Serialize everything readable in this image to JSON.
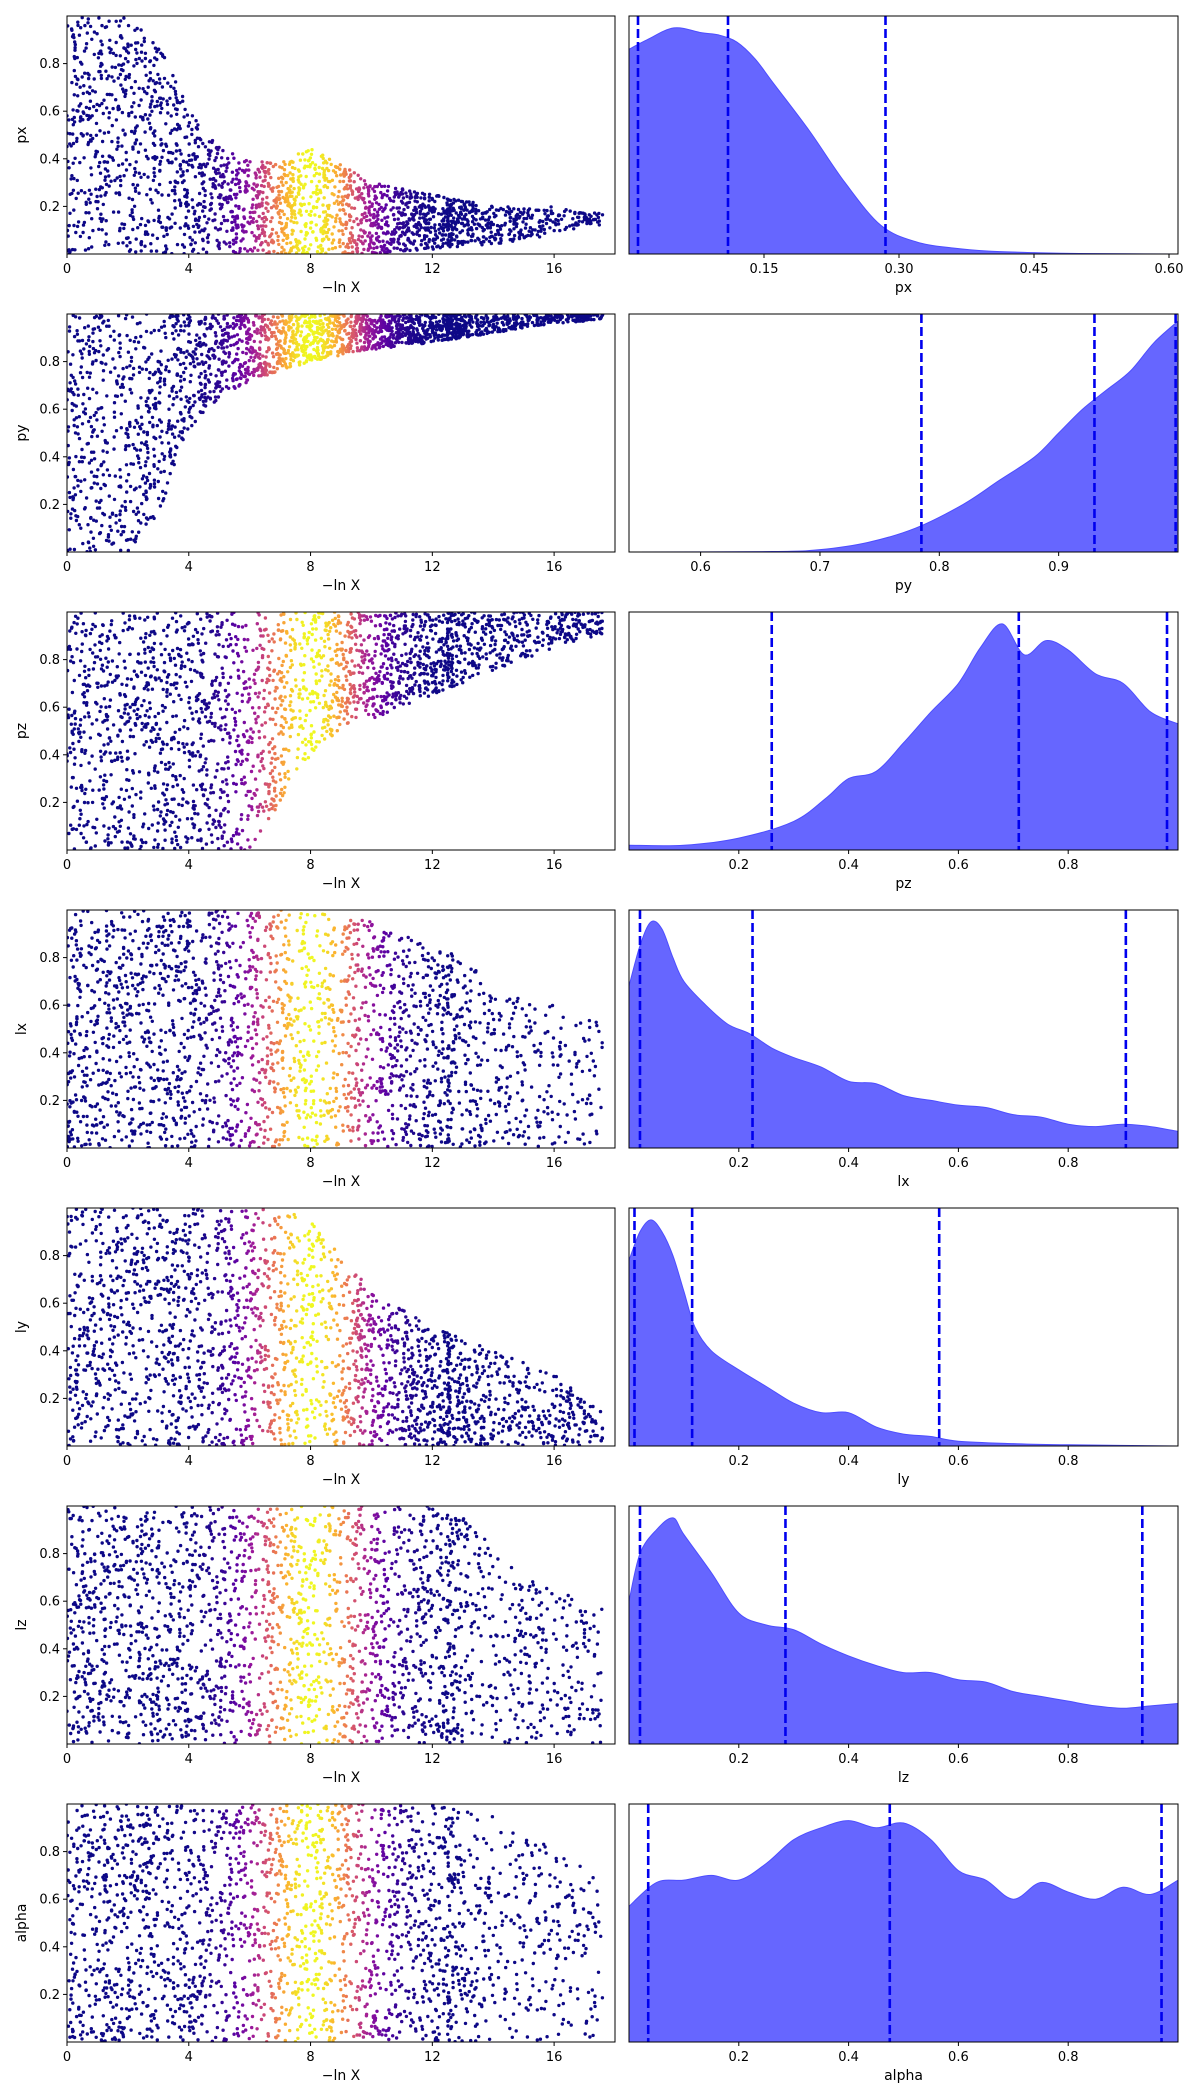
{
  "figure": {
    "colors": {
      "kde_fill": "#6666ff",
      "kde_line": "#4d4dff",
      "quantile_line": "#0000ee",
      "colormap": [
        "#0d0887",
        "#5b02a3",
        "#9a179b",
        "#cb4678",
        "#eb7852",
        "#fbb32f",
        "#eff821"
      ]
    },
    "trace_xlabel": "−ln X",
    "trace_xlim": [
      0,
      18
    ],
    "trace_xticks": [
      0,
      4,
      8,
      12,
      16
    ],
    "trace_xtick_labels": [
      "0",
      "4",
      "8",
      "12",
      "16"
    ],
    "weight_peak_at": 8,
    "weight_width": 1.3
  },
  "chart_data": [
    {
      "type": "scatter",
      "panel": "trace",
      "param": "px",
      "ylabel": "px",
      "xlabel": "−ln X",
      "xlim": [
        0,
        18
      ],
      "ylim": [
        0,
        1
      ],
      "yticks": [
        0.2,
        0.4,
        0.6,
        0.8
      ],
      "ytick_labels": [
        "0.2",
        "0.4",
        "0.6",
        "0.8"
      ],
      "envelope": {
        "x": [
          0,
          2,
          3,
          4,
          5,
          6,
          7,
          8,
          10,
          12,
          14,
          16,
          17
        ],
        "ymax": [
          1.0,
          1.0,
          0.92,
          0.6,
          0.45,
          0.4,
          0.38,
          0.45,
          0.3,
          0.25,
          0.2,
          0.2,
          0.18
        ],
        "ymin": [
          0,
          0,
          0,
          0,
          0,
          0,
          0,
          0,
          0,
          0.02,
          0.04,
          0.08,
          0.12
        ]
      },
      "point_count": 2300,
      "x_range": [
        0,
        17.6
      ]
    },
    {
      "type": "area",
      "panel": "posterior",
      "param": "px",
      "xlabel": "px",
      "xlim": [
        0,
        0.61
      ],
      "xticks": [
        0.15,
        0.3,
        0.45,
        0.6
      ],
      "xtick_labels": [
        "0.15",
        "0.30",
        "0.45",
        "0.60"
      ],
      "density": {
        "x": [
          0,
          0.02,
          0.05,
          0.08,
          0.1,
          0.12,
          0.14,
          0.16,
          0.2,
          0.24,
          0.28,
          0.32,
          0.36,
          0.4,
          0.45,
          0.5,
          0.61
        ],
        "y": [
          0.86,
          0.9,
          0.95,
          0.93,
          0.92,
          0.89,
          0.82,
          0.72,
          0.52,
          0.3,
          0.12,
          0.05,
          0.025,
          0.012,
          0.006,
          0.002,
          0.0
        ]
      },
      "quantiles": [
        0.01,
        0.11,
        0.285
      ]
    },
    {
      "type": "scatter",
      "panel": "trace",
      "param": "py",
      "ylabel": "py",
      "xlabel": "−ln X",
      "xlim": [
        0,
        18
      ],
      "ylim": [
        0,
        1
      ],
      "yticks": [
        0.2,
        0.4,
        0.6,
        0.8
      ],
      "ytick_labels": [
        "0.2",
        "0.4",
        "0.6",
        "0.8"
      ],
      "envelope": {
        "x": [
          0,
          2,
          3,
          4,
          5,
          6,
          8,
          10,
          12,
          14,
          16,
          18
        ],
        "ymax": [
          1,
          1,
          1,
          1,
          1,
          1,
          1,
          1,
          1,
          1,
          1,
          1
        ],
        "ymin": [
          0,
          0,
          0.15,
          0.5,
          0.65,
          0.72,
          0.8,
          0.85,
          0.88,
          0.92,
          0.96,
          0.98
        ]
      },
      "point_count": 2300,
      "x_range": [
        0,
        17.6
      ]
    },
    {
      "type": "area",
      "panel": "posterior",
      "param": "py",
      "xlabel": "py",
      "xlim": [
        0.54,
        1.0
      ],
      "xticks": [
        0.6,
        0.7,
        0.8,
        0.9
      ],
      "xtick_labels": [
        "0.6",
        "0.7",
        "0.8",
        "0.9"
      ],
      "density": {
        "x": [
          0.54,
          0.66,
          0.7,
          0.74,
          0.78,
          0.82,
          0.85,
          0.88,
          0.9,
          0.92,
          0.94,
          0.96,
          0.98,
          1.0
        ],
        "y": [
          0.0,
          0.002,
          0.01,
          0.04,
          0.1,
          0.2,
          0.3,
          0.4,
          0.5,
          0.6,
          0.68,
          0.76,
          0.88,
          0.97
        ]
      },
      "quantiles": [
        0.785,
        0.93,
        0.998
      ]
    },
    {
      "type": "scatter",
      "panel": "trace",
      "param": "pz",
      "ylabel": "pz",
      "xlabel": "−ln X",
      "xlim": [
        0,
        18
      ],
      "ylim": [
        0,
        1
      ],
      "yticks": [
        0.2,
        0.4,
        0.6,
        0.8
      ],
      "ytick_labels": [
        "0.2",
        "0.4",
        "0.6",
        "0.8"
      ],
      "envelope": {
        "x": [
          0,
          4,
          6,
          7,
          8,
          9,
          10,
          12,
          14,
          16,
          18
        ],
        "ymax": [
          1,
          1,
          1,
          1,
          1,
          1,
          1,
          1,
          1,
          1,
          1
        ],
        "ymin": [
          0,
          0,
          0,
          0.2,
          0.4,
          0.5,
          0.55,
          0.65,
          0.75,
          0.85,
          0.92
        ]
      },
      "point_count": 2300,
      "x_range": [
        0,
        17.6
      ]
    },
    {
      "type": "area",
      "panel": "posterior",
      "param": "pz",
      "xlabel": "pz",
      "xlim": [
        0,
        1.0
      ],
      "xticks": [
        0.2,
        0.4,
        0.6,
        0.8
      ],
      "xtick_labels": [
        "0.2",
        "0.4",
        "0.6",
        "0.8"
      ],
      "density": {
        "x": [
          0,
          0.1,
          0.2,
          0.3,
          0.36,
          0.4,
          0.45,
          0.5,
          0.55,
          0.6,
          0.64,
          0.68,
          0.72,
          0.76,
          0.8,
          0.85,
          0.9,
          0.95,
          1.0
        ],
        "y": [
          0.02,
          0.02,
          0.05,
          0.12,
          0.22,
          0.3,
          0.33,
          0.45,
          0.58,
          0.7,
          0.85,
          0.95,
          0.82,
          0.88,
          0.84,
          0.74,
          0.7,
          0.58,
          0.53
        ]
      },
      "quantiles": [
        0.26,
        0.71,
        0.98
      ]
    },
    {
      "type": "scatter",
      "panel": "trace",
      "param": "lx",
      "ylabel": "lx",
      "xlabel": "−ln X",
      "xlim": [
        0,
        18
      ],
      "ylim": [
        0,
        1
      ],
      "yticks": [
        0.2,
        0.4,
        0.6,
        0.8
      ],
      "ytick_labels": [
        "0.2",
        "0.4",
        "0.6",
        "0.8"
      ],
      "envelope": {
        "x": [
          0,
          6,
          8,
          10,
          11,
          12,
          13,
          14,
          15,
          16,
          17,
          18
        ],
        "ymax": [
          1,
          1,
          1,
          0.95,
          0.9,
          0.85,
          0.8,
          0.7,
          0.65,
          0.6,
          0.55,
          0.5
        ],
        "ymin": [
          0,
          0,
          0,
          0,
          0,
          0,
          0,
          0,
          0,
          0,
          0,
          0
        ]
      },
      "point_count": 2300,
      "x_range": [
        0,
        17.6
      ]
    },
    {
      "type": "area",
      "panel": "posterior",
      "param": "lx",
      "xlabel": "lx",
      "xlim": [
        0,
        1.0
      ],
      "xticks": [
        0.2,
        0.4,
        0.6,
        0.8
      ],
      "xtick_labels": [
        "0.2",
        "0.4",
        "0.6",
        "0.8"
      ],
      "density": {
        "x": [
          0,
          0.02,
          0.04,
          0.06,
          0.08,
          0.1,
          0.14,
          0.18,
          0.22,
          0.26,
          0.3,
          0.35,
          0.4,
          0.45,
          0.5,
          0.55,
          0.6,
          0.65,
          0.7,
          0.75,
          0.8,
          0.85,
          0.9,
          0.95,
          1.0
        ],
        "y": [
          0.68,
          0.85,
          0.95,
          0.92,
          0.8,
          0.7,
          0.6,
          0.52,
          0.48,
          0.42,
          0.38,
          0.34,
          0.28,
          0.27,
          0.22,
          0.2,
          0.18,
          0.17,
          0.14,
          0.13,
          0.1,
          0.09,
          0.1,
          0.09,
          0.07
        ]
      },
      "quantiles": [
        0.02,
        0.225,
        0.905
      ]
    },
    {
      "type": "scatter",
      "panel": "trace",
      "param": "ly",
      "ylabel": "ly",
      "xlabel": "−ln X",
      "xlim": [
        0,
        18
      ],
      "ylim": [
        0,
        1
      ],
      "yticks": [
        0.2,
        0.4,
        0.6,
        0.8
      ],
      "ytick_labels": [
        "0.2",
        "0.4",
        "0.6",
        "0.8"
      ],
      "envelope": {
        "x": [
          0,
          6,
          7,
          8,
          10,
          12,
          13,
          14,
          15,
          16,
          17,
          18
        ],
        "ymax": [
          1,
          1,
          1,
          0.95,
          0.65,
          0.5,
          0.45,
          0.4,
          0.35,
          0.3,
          0.2,
          0.1
        ],
        "ymin": [
          0,
          0,
          0,
          0,
          0,
          0,
          0,
          0,
          0,
          0,
          0,
          0
        ]
      },
      "point_count": 2300,
      "x_range": [
        0,
        17.6
      ]
    },
    {
      "type": "area",
      "panel": "posterior",
      "param": "ly",
      "xlabel": "ly",
      "xlim": [
        0,
        1.0
      ],
      "xticks": [
        0.2,
        0.4,
        0.6,
        0.8
      ],
      "xtick_labels": [
        "0.2",
        "0.4",
        "0.6",
        "0.8"
      ],
      "density": {
        "x": [
          0,
          0.02,
          0.04,
          0.06,
          0.08,
          0.1,
          0.12,
          0.15,
          0.2,
          0.25,
          0.3,
          0.35,
          0.4,
          0.45,
          0.5,
          0.55,
          0.6,
          0.7,
          0.8,
          1.0
        ],
        "y": [
          0.78,
          0.9,
          0.95,
          0.9,
          0.8,
          0.65,
          0.5,
          0.4,
          0.32,
          0.25,
          0.18,
          0.14,
          0.14,
          0.08,
          0.05,
          0.04,
          0.02,
          0.01,
          0.005,
          0.0
        ]
      },
      "quantiles": [
        0.01,
        0.115,
        0.565
      ]
    },
    {
      "type": "scatter",
      "panel": "trace",
      "param": "lz",
      "ylabel": "lz",
      "xlabel": "−ln X",
      "xlim": [
        0,
        18
      ],
      "ylim": [
        0,
        1
      ],
      "yticks": [
        0.2,
        0.4,
        0.6,
        0.8
      ],
      "ytick_labels": [
        "0.2",
        "0.4",
        "0.6",
        "0.8"
      ],
      "envelope": {
        "x": [
          0,
          6,
          8,
          10,
          12,
          13,
          14,
          15,
          16,
          17,
          18
        ],
        "ymax": [
          1,
          1,
          1,
          1,
          1,
          0.95,
          0.85,
          0.7,
          0.65,
          0.6,
          0.55
        ],
        "ymin": [
          0,
          0,
          0,
          0,
          0,
          0,
          0,
          0,
          0,
          0,
          0
        ]
      },
      "point_count": 2300,
      "x_range": [
        0,
        17.6
      ]
    },
    {
      "type": "area",
      "panel": "posterior",
      "param": "lz",
      "xlabel": "lz",
      "xlim": [
        0,
        1.0
      ],
      "xticks": [
        0.2,
        0.4,
        0.6,
        0.8
      ],
      "xtick_labels": [
        "0.2",
        "0.4",
        "0.6",
        "0.8"
      ],
      "density": {
        "x": [
          0,
          0.02,
          0.05,
          0.08,
          0.1,
          0.15,
          0.2,
          0.25,
          0.3,
          0.35,
          0.4,
          0.45,
          0.5,
          0.55,
          0.6,
          0.65,
          0.7,
          0.75,
          0.8,
          0.85,
          0.9,
          0.95,
          1.0
        ],
        "y": [
          0.6,
          0.8,
          0.9,
          0.95,
          0.88,
          0.72,
          0.55,
          0.5,
          0.48,
          0.42,
          0.37,
          0.33,
          0.3,
          0.3,
          0.27,
          0.26,
          0.22,
          0.2,
          0.18,
          0.16,
          0.15,
          0.16,
          0.17
        ]
      },
      "quantiles": [
        0.02,
        0.285,
        0.935
      ]
    },
    {
      "type": "scatter",
      "panel": "trace",
      "param": "alpha",
      "ylabel": "alpha",
      "xlabel": "−ln X",
      "xlim": [
        0,
        18
      ],
      "ylim": [
        0,
        1
      ],
      "yticks": [
        0.2,
        0.4,
        0.6,
        0.8
      ],
      "ytick_labels": [
        "0.2",
        "0.4",
        "0.6",
        "0.8"
      ],
      "envelope": {
        "x": [
          0,
          6,
          8,
          10,
          12,
          13,
          14,
          15,
          16,
          17,
          18
        ],
        "ymax": [
          1,
          1,
          1,
          1,
          1,
          0.98,
          0.95,
          0.9,
          0.8,
          0.75,
          0.6
        ],
        "ymin": [
          0,
          0,
          0,
          0,
          0,
          0,
          0,
          0,
          0,
          0,
          0
        ]
      },
      "point_count": 2300,
      "x_range": [
        0,
        17.6
      ]
    },
    {
      "type": "area",
      "panel": "posterior",
      "param": "alpha",
      "xlabel": "alpha",
      "xlim": [
        0,
        1.0
      ],
      "xticks": [
        0.2,
        0.4,
        0.6,
        0.8
      ],
      "xtick_labels": [
        "0.2",
        "0.4",
        "0.6",
        "0.8"
      ],
      "density": {
        "x": [
          0,
          0.05,
          0.1,
          0.15,
          0.2,
          0.25,
          0.3,
          0.35,
          0.4,
          0.45,
          0.5,
          0.55,
          0.6,
          0.65,
          0.7,
          0.75,
          0.8,
          0.85,
          0.9,
          0.95,
          1.0
        ],
        "y": [
          0.57,
          0.67,
          0.68,
          0.7,
          0.68,
          0.75,
          0.85,
          0.9,
          0.93,
          0.9,
          0.92,
          0.85,
          0.72,
          0.68,
          0.6,
          0.67,
          0.63,
          0.6,
          0.65,
          0.62,
          0.68
        ]
      },
      "quantiles": [
        0.035,
        0.475,
        0.97
      ]
    }
  ]
}
